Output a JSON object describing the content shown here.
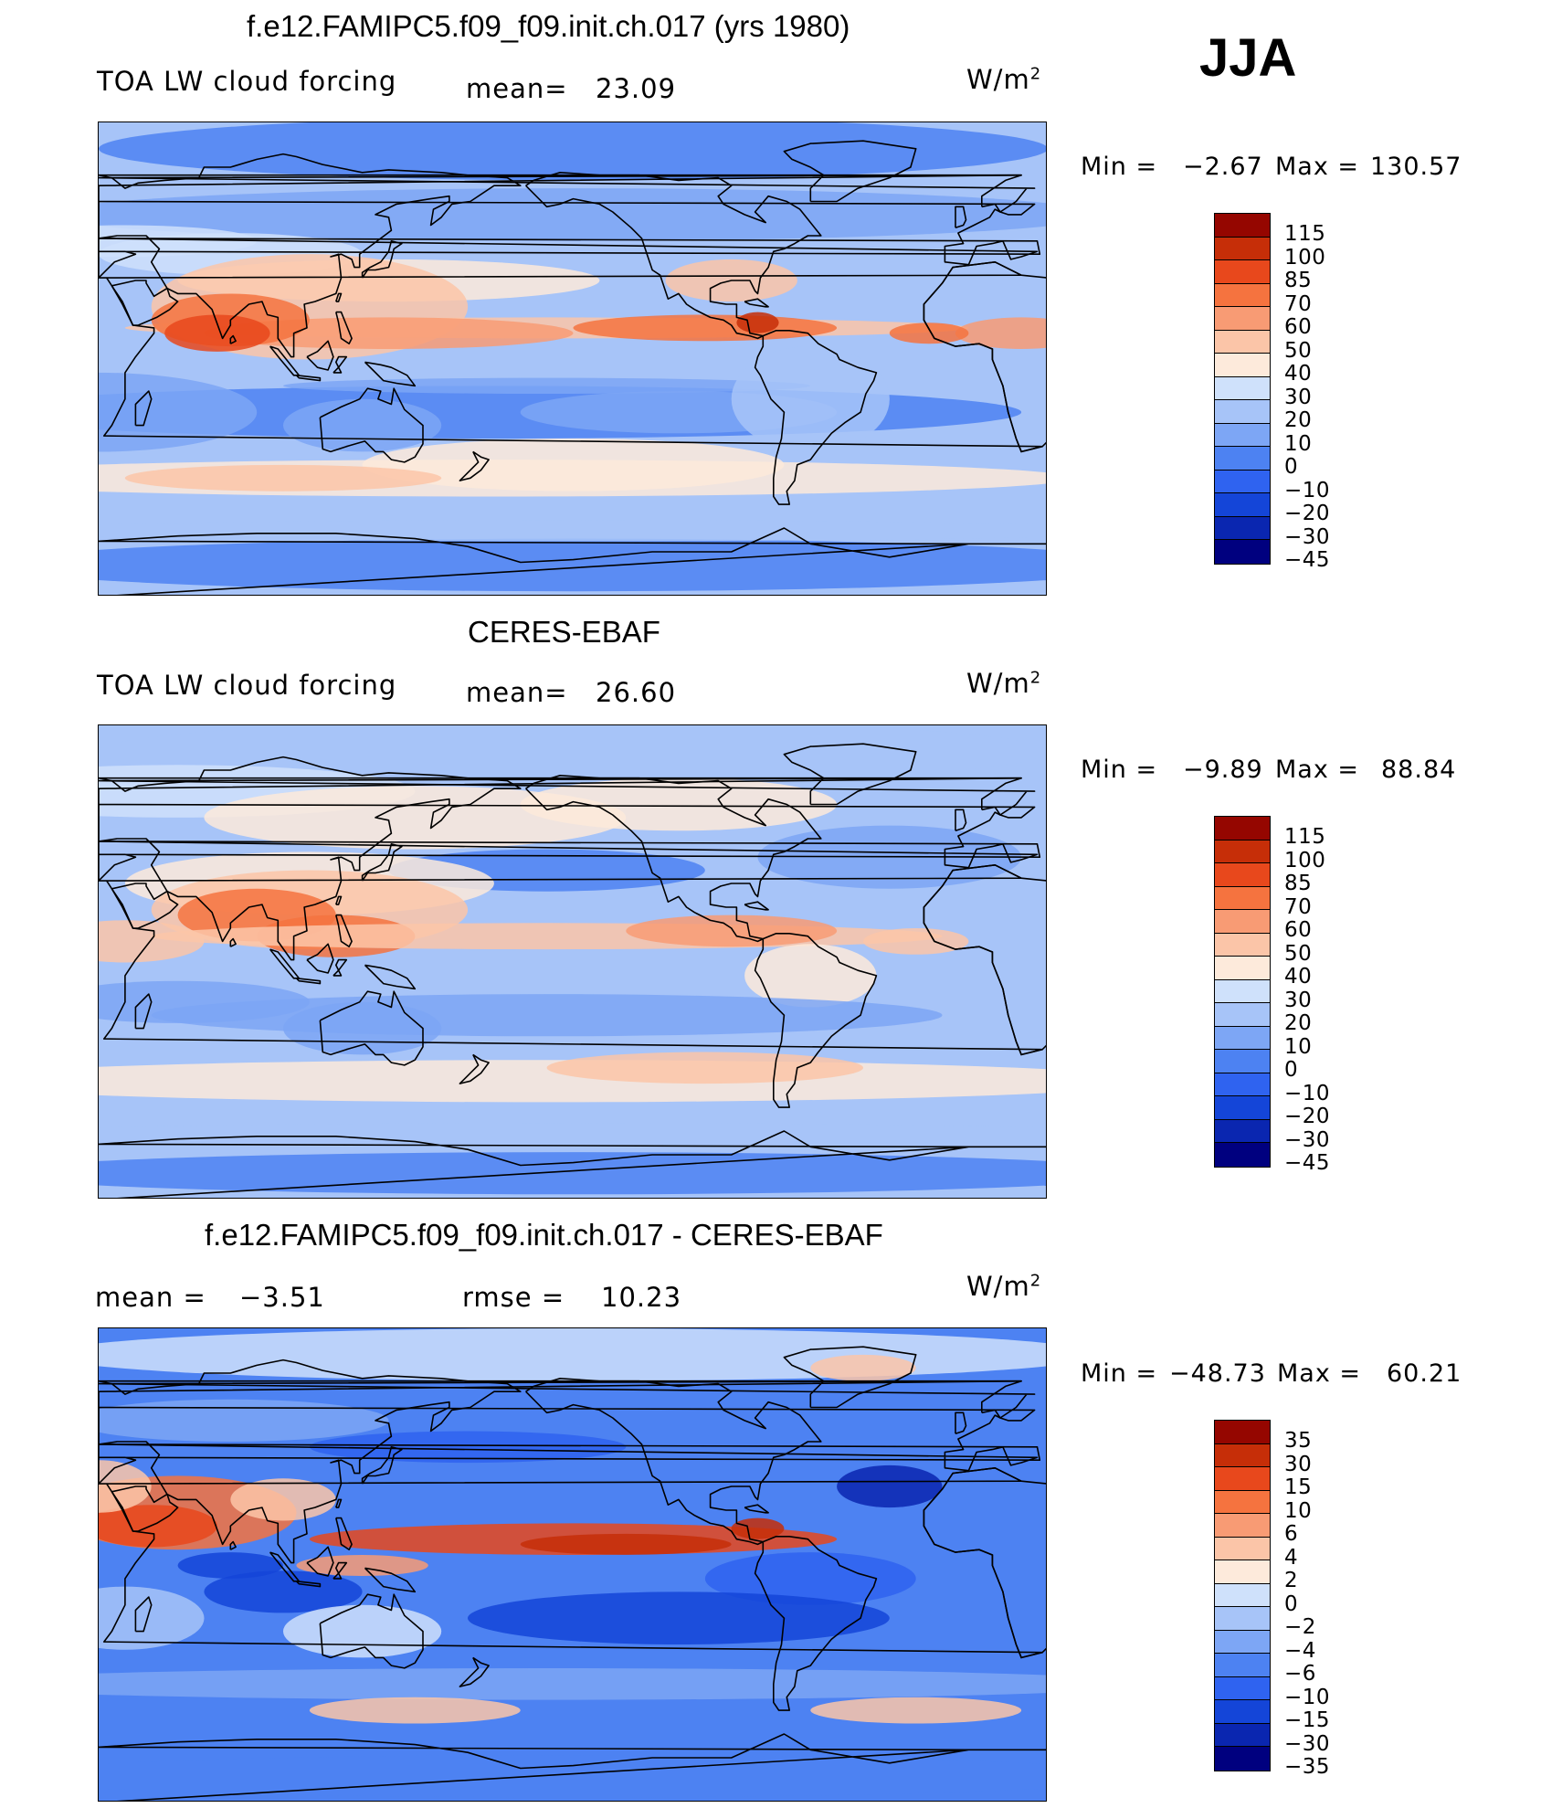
{
  "season": "JJA",
  "colors": {
    "rdbu": [
      "#00007f",
      "#0a26b0",
      "#1445d8",
      "#2f63f0",
      "#4d82f2",
      "#7da6f5",
      "#a7c4f8",
      "#cfe1fb",
      "#fdeadb",
      "#fbc5a8",
      "#f89b74",
      "#f5733f",
      "#e8481c",
      "#c62e08",
      "#950600"
    ],
    "land_outline": "#000000"
  },
  "panels": [
    {
      "title": "f.e12.FAMIPC5.f09_f09.init.ch.017 (yrs 1980)",
      "left_label": "TOA  LW  cloud  forcing",
      "stat_label": "mean=",
      "stat_value": "23.09",
      "units": "W/m",
      "units_sup": "2",
      "min_label": "Min  =",
      "min_value": "−2.67",
      "max_label": "Max  =",
      "max_value": "130.57",
      "cbar_labels": [
        "115",
        "100",
        "85",
        "70",
        "60",
        "50",
        "40",
        "30",
        "20",
        "10",
        "0",
        "−10",
        "−20",
        "−30",
        "−45"
      ]
    },
    {
      "title": "CERES-EBAF",
      "left_label": "TOA  LW  cloud  forcing",
      "stat_label": "mean=",
      "stat_value": "26.60",
      "units": "W/m",
      "units_sup": "2",
      "min_label": "Min  =",
      "min_value": "−9.89",
      "max_label": "Max  =",
      "max_value": "88.84",
      "cbar_labels": [
        "115",
        "100",
        "85",
        "70",
        "60",
        "50",
        "40",
        "30",
        "20",
        "10",
        "0",
        "−10",
        "−20",
        "−30",
        "−45"
      ]
    },
    {
      "title": "f.e12.FAMIPC5.f09_f09.init.ch.017 - CERES-EBAF",
      "left_label": "mean  =",
      "left_value": "−3.51",
      "stat_label": "rmse  =",
      "stat_value": "10.23",
      "units": "W/m",
      "units_sup": "2",
      "min_label": "Min  =",
      "min_value": "−48.73",
      "max_label": "Max  =",
      "max_value": "60.21",
      "cbar_labels": [
        "35",
        "30",
        "15",
        "10",
        "6",
        "4",
        "2",
        "0",
        "−2",
        "−4",
        "−6",
        "−10",
        "−15",
        "−30",
        "−35"
      ]
    }
  ]
}
